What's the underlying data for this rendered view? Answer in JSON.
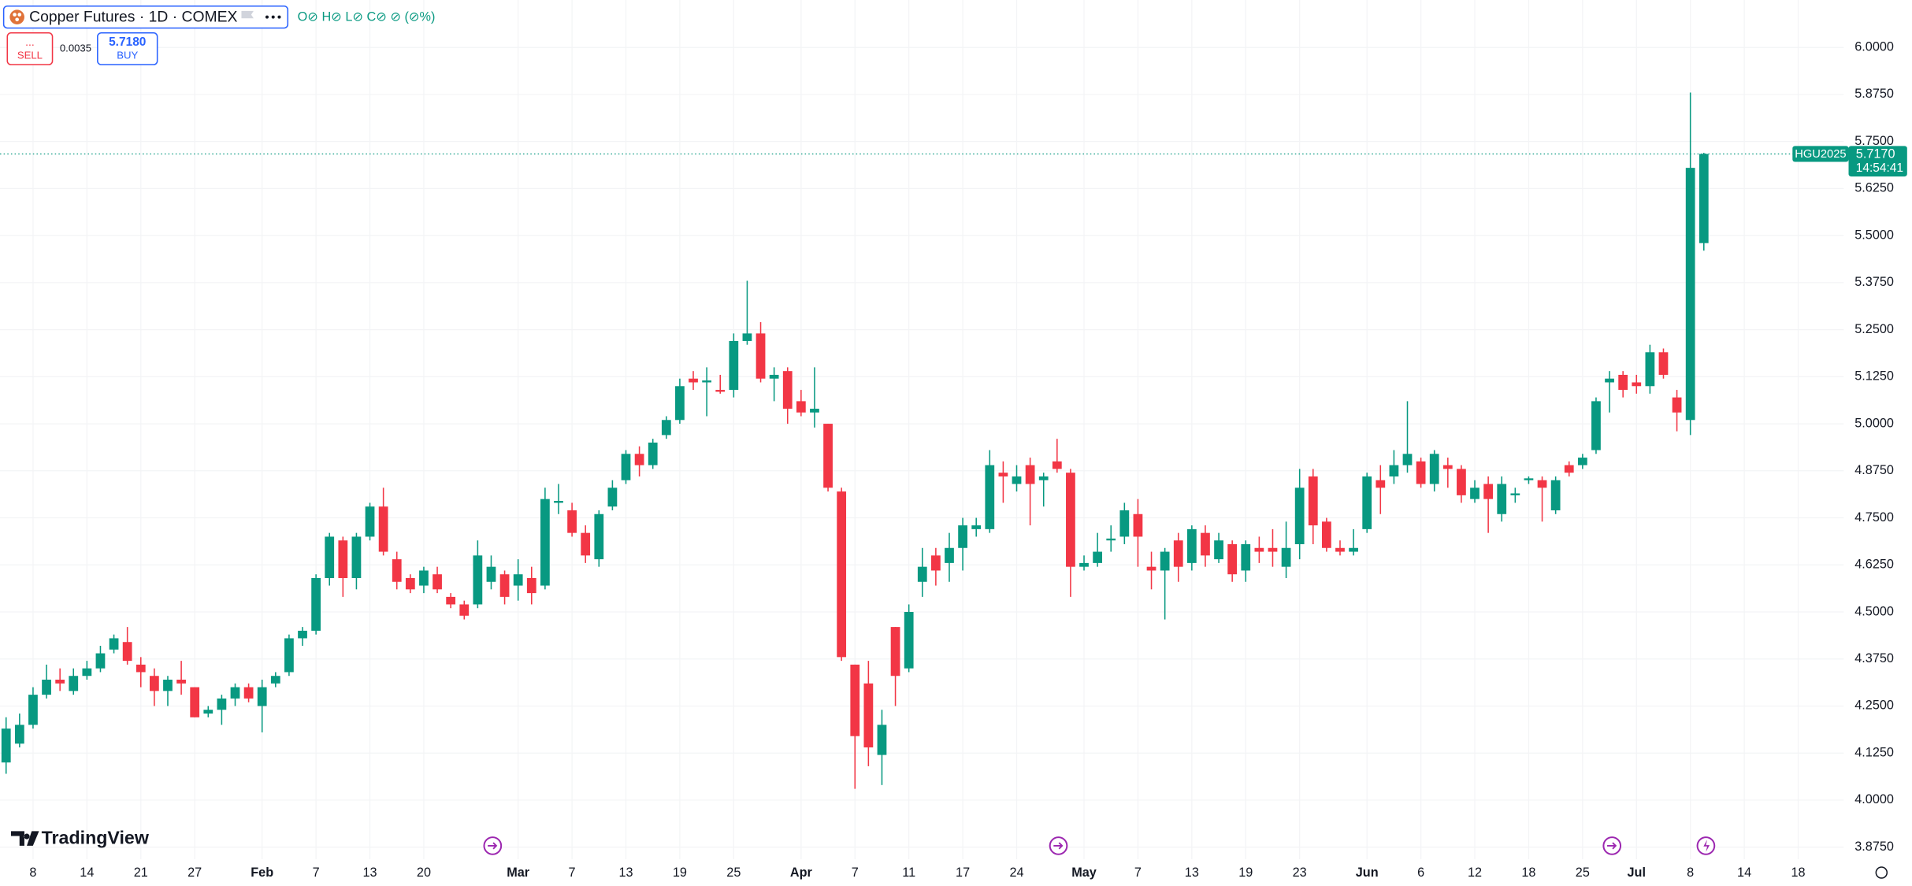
{
  "ui": {
    "title": "Copper Futures · 1D · COMEX",
    "ohlc": "O⊘ H⊘ L⊘ C⊘ ⊘ (⊘%)",
    "sell_dots": "...",
    "sell": "SELL",
    "spread": "0.0035",
    "buy_price": "5.7180",
    "buy": "BUY",
    "symbol": "HGU2025",
    "last_price": "5.7170",
    "countdown": "14:54:41",
    "logo": "TradingView"
  },
  "chart_data": {
    "type": "candlestick",
    "up_color": "#089981",
    "down_color": "#f23645",
    "grid": true,
    "categories": [
      null,
      null,
      "8",
      null,
      null,
      null,
      "14",
      null,
      null,
      null,
      "21",
      null,
      null,
      null,
      "27",
      null,
      null,
      null,
      null,
      "Feb",
      null,
      null,
      null,
      "7",
      null,
      null,
      null,
      "13",
      null,
      null,
      null,
      "20",
      null,
      null,
      null,
      null,
      null,
      null,
      "Mar",
      null,
      null,
      null,
      "7",
      null,
      null,
      null,
      "13",
      null,
      null,
      null,
      "19",
      null,
      null,
      null,
      "25",
      null,
      null,
      null,
      null,
      "Apr",
      null,
      null,
      null,
      "7",
      null,
      null,
      null,
      "11",
      null,
      null,
      null,
      "17",
      null,
      null,
      null,
      "24",
      null,
      null,
      null,
      null,
      "May",
      null,
      null,
      null,
      "7",
      null,
      null,
      null,
      "13",
      null,
      null,
      null,
      "19",
      null,
      null,
      null,
      "23",
      null,
      null,
      null,
      null,
      "Jun",
      null,
      null,
      null,
      "6",
      null,
      null,
      null,
      "12",
      null,
      null,
      null,
      "18",
      null,
      null,
      null,
      "25",
      null,
      null,
      null,
      "Jul",
      null,
      null,
      null,
      "8",
      null,
      null,
      null,
      "14",
      null,
      null,
      null,
      "18"
    ],
    "open": [
      4.1,
      4.15,
      4.2,
      4.28,
      4.32,
      4.29,
      4.33,
      4.35,
      4.4,
      4.42,
      4.36,
      4.33,
      4.29,
      4.32,
      4.3,
      4.23,
      4.24,
      4.27,
      4.3,
      4.25,
      4.31,
      4.34,
      4.43,
      4.45,
      4.59,
      4.69,
      4.59,
      4.7,
      4.78,
      4.64,
      4.59,
      4.57,
      4.6,
      4.54,
      4.52,
      4.52,
      4.58,
      4.6,
      4.57,
      4.59,
      4.57,
      4.79,
      4.77,
      4.71,
      4.64,
      4.78,
      4.85,
      4.92,
      4.89,
      4.97,
      5.01,
      5.12,
      5.11,
      5.09,
      5.09,
      5.22,
      5.24,
      5.12,
      5.14,
      5.06,
      5.03,
      5.0,
      4.82,
      4.36,
      4.31,
      4.12,
      4.46,
      4.35,
      4.58,
      4.65,
      4.63,
      4.67,
      4.72,
      4.72,
      4.87,
      4.84,
      4.89,
      4.85,
      4.9,
      4.87,
      4.62,
      4.63,
      4.69,
      4.7,
      4.76,
      4.62,
      4.61,
      4.69,
      4.63,
      4.71,
      4.64,
      4.68,
      4.61,
      4.67,
      4.67,
      4.62,
      4.68,
      4.86,
      4.74,
      4.67,
      4.66,
      4.72,
      4.85,
      4.86,
      4.89,
      4.9,
      4.84,
      4.89,
      4.88,
      4.8,
      4.84,
      4.76,
      4.81,
      4.85,
      4.85,
      4.77,
      4.89,
      4.89,
      4.93,
      5.11,
      5.13,
      5.11,
      5.1,
      5.19,
      5.07,
      5.01,
      5.48,
      null,
      null,
      null,
      null,
      null,
      null,
      null
    ],
    "high": [
      4.22,
      4.23,
      4.3,
      4.36,
      4.35,
      4.35,
      4.37,
      4.41,
      4.44,
      4.46,
      4.38,
      4.35,
      4.33,
      4.37,
      4.3,
      4.25,
      4.28,
      4.31,
      4.31,
      4.32,
      4.34,
      4.44,
      4.46,
      4.6,
      4.71,
      4.7,
      4.71,
      4.79,
      4.83,
      4.66,
      4.6,
      4.62,
      4.62,
      4.55,
      4.53,
      4.69,
      4.65,
      4.61,
      4.64,
      4.62,
      4.83,
      4.84,
      4.79,
      4.73,
      4.77,
      4.85,
      4.93,
      4.94,
      4.96,
      5.02,
      5.12,
      5.14,
      5.15,
      5.13,
      5.24,
      5.38,
      5.27,
      5.15,
      5.15,
      5.09,
      5.15,
      5.0,
      4.83,
      4.36,
      4.37,
      4.24,
      4.46,
      4.52,
      4.67,
      4.67,
      4.71,
      4.75,
      4.75,
      4.93,
      4.9,
      4.89,
      4.91,
      4.87,
      4.96,
      4.88,
      4.65,
      4.71,
      4.73,
      4.79,
      4.8,
      4.66,
      4.67,
      4.71,
      4.73,
      4.73,
      4.71,
      4.69,
      4.69,
      4.7,
      4.72,
      4.74,
      4.88,
      4.88,
      4.75,
      4.69,
      4.72,
      4.87,
      4.89,
      4.93,
      5.06,
      4.91,
      4.93,
      4.91,
      4.89,
      4.85,
      4.86,
      4.86,
      4.83,
      4.86,
      4.86,
      4.86,
      4.9,
      4.92,
      5.07,
      5.14,
      5.14,
      5.13,
      5.21,
      5.2,
      5.09,
      5.88,
      5.72,
      null,
      null,
      null,
      null,
      null,
      null,
      null
    ],
    "low": [
      4.07,
      4.14,
      4.19,
      4.27,
      4.29,
      4.28,
      4.32,
      4.34,
      4.39,
      4.36,
      4.3,
      4.25,
      4.25,
      4.28,
      4.22,
      4.22,
      4.2,
      4.25,
      4.26,
      4.18,
      4.3,
      4.33,
      4.41,
      4.44,
      4.57,
      4.54,
      4.56,
      4.69,
      4.65,
      4.56,
      4.55,
      4.55,
      4.55,
      4.51,
      4.48,
      4.51,
      4.56,
      4.52,
      4.53,
      4.52,
      4.56,
      4.76,
      4.7,
      4.63,
      4.62,
      4.77,
      4.84,
      4.86,
      4.88,
      4.96,
      5.0,
      5.09,
      5.02,
      5.08,
      5.07,
      5.21,
      5.11,
      5.06,
      5.0,
      5.02,
      4.99,
      4.82,
      4.37,
      4.03,
      4.09,
      4.04,
      4.25,
      4.34,
      4.54,
      4.57,
      4.58,
      4.61,
      4.7,
      4.71,
      4.79,
      4.82,
      4.73,
      4.78,
      4.87,
      4.54,
      4.61,
      4.62,
      4.66,
      4.68,
      4.62,
      4.56,
      4.48,
      4.58,
      4.61,
      4.62,
      4.63,
      4.58,
      4.58,
      4.63,
      4.62,
      4.59,
      4.64,
      4.68,
      4.66,
      4.65,
      4.65,
      4.71,
      4.76,
      4.84,
      4.87,
      4.83,
      4.82,
      4.83,
      4.79,
      4.79,
      4.71,
      4.74,
      4.79,
      4.84,
      4.74,
      4.76,
      4.86,
      4.88,
      4.92,
      5.03,
      5.07,
      5.08,
      5.08,
      5.12,
      4.98,
      4.97,
      5.46,
      null,
      null,
      null,
      null,
      null,
      null,
      null
    ],
    "close": [
      4.19,
      4.2,
      4.28,
      4.32,
      4.31,
      4.33,
      4.35,
      4.39,
      4.43,
      4.37,
      4.34,
      4.29,
      4.32,
      4.31,
      4.22,
      4.24,
      4.27,
      4.3,
      4.27,
      4.3,
      4.33,
      4.43,
      4.45,
      4.59,
      4.7,
      4.59,
      4.7,
      4.78,
      4.66,
      4.58,
      4.56,
      4.61,
      4.56,
      4.52,
      4.49,
      4.65,
      4.62,
      4.54,
      4.6,
      4.55,
      4.8,
      4.795,
      4.71,
      4.65,
      4.76,
      4.83,
      4.92,
      4.89,
      4.95,
      5.01,
      5.1,
      5.11,
      5.115,
      5.085,
      5.22,
      5.24,
      5.12,
      5.13,
      5.04,
      5.03,
      5.04,
      4.83,
      4.38,
      4.17,
      4.14,
      4.2,
      4.33,
      4.5,
      4.62,
      4.61,
      4.67,
      4.73,
      4.73,
      4.89,
      4.86,
      4.86,
      4.84,
      4.86,
      4.88,
      4.62,
      4.63,
      4.66,
      4.695,
      4.77,
      4.7,
      4.61,
      4.66,
      4.62,
      4.72,
      4.65,
      4.69,
      4.6,
      4.68,
      4.66,
      4.66,
      4.67,
      4.83,
      4.73,
      4.67,
      4.66,
      4.67,
      4.86,
      4.83,
      4.89,
      4.92,
      4.84,
      4.92,
      4.88,
      4.81,
      4.83,
      4.8,
      4.84,
      4.815,
      4.855,
      4.83,
      4.85,
      4.87,
      4.91,
      5.06,
      5.12,
      5.09,
      5.1,
      5.19,
      5.13,
      5.03,
      5.68,
      5.717,
      null,
      null,
      null,
      null,
      null,
      null,
      null
    ],
    "ylim": [
      3.843,
      6.126
    ],
    "yticks": [
      {
        "value": 3.875,
        "label": "3.8750"
      },
      {
        "value": 4.0,
        "label": "4.0000"
      },
      {
        "value": 4.125,
        "label": "4.1250"
      },
      {
        "value": 4.25,
        "label": "4.2500"
      },
      {
        "value": 4.375,
        "label": "4.3750"
      },
      {
        "value": 4.5,
        "label": "4.5000"
      },
      {
        "value": 4.625,
        "label": "4.6250"
      },
      {
        "value": 4.75,
        "label": "4.7500"
      },
      {
        "value": 4.875,
        "label": "4.8750"
      },
      {
        "value": 5.0,
        "label": "5.0000"
      },
      {
        "value": 5.125,
        "label": "5.1250"
      },
      {
        "value": 5.25,
        "label": "5.2500"
      },
      {
        "value": 5.375,
        "label": "5.3750"
      },
      {
        "value": 5.5,
        "label": "5.5000"
      },
      {
        "value": 5.625,
        "label": "5.6250"
      },
      {
        "value": 5.75,
        "label": "5.7500"
      },
      {
        "value": 5.875,
        "label": "5.8750"
      },
      {
        "value": 6.0,
        "label": "6.0000"
      }
    ]
  }
}
